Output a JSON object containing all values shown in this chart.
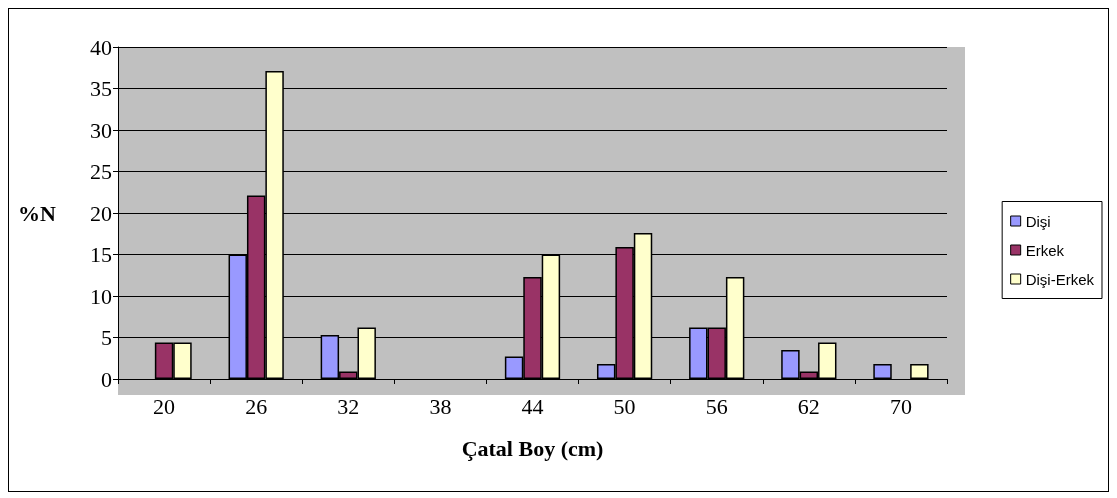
{
  "chart_data": {
    "type": "bar",
    "xlabel": "Çatal Boy (cm)",
    "ylabel": "%N",
    "categories": [
      "20",
      "26",
      "32",
      "38",
      "44",
      "50",
      "56",
      "62",
      "70"
    ],
    "series": [
      {
        "name": "Dişi",
        "color": "#9999ff",
        "values": [
          null,
          15,
          5.3,
          null,
          2.7,
          1.8,
          6.2,
          3.5,
          1.8
        ]
      },
      {
        "name": "Erkek",
        "color": "#993366",
        "values": [
          4.4,
          22.1,
          0.9,
          null,
          12.3,
          15.9,
          6.2,
          0.9,
          null
        ]
      },
      {
        "name": "Dişi-Erkek",
        "color": "#ffffcc",
        "values": [
          4.4,
          37.1,
          6.2,
          null,
          15,
          17.6,
          12.3,
          4.4,
          1.8
        ]
      }
    ],
    "ylim": [
      0,
      40
    ],
    "yticks": [
      0,
      5,
      10,
      15,
      20,
      25,
      30,
      35,
      40
    ],
    "grid": "y",
    "legend": "right"
  }
}
